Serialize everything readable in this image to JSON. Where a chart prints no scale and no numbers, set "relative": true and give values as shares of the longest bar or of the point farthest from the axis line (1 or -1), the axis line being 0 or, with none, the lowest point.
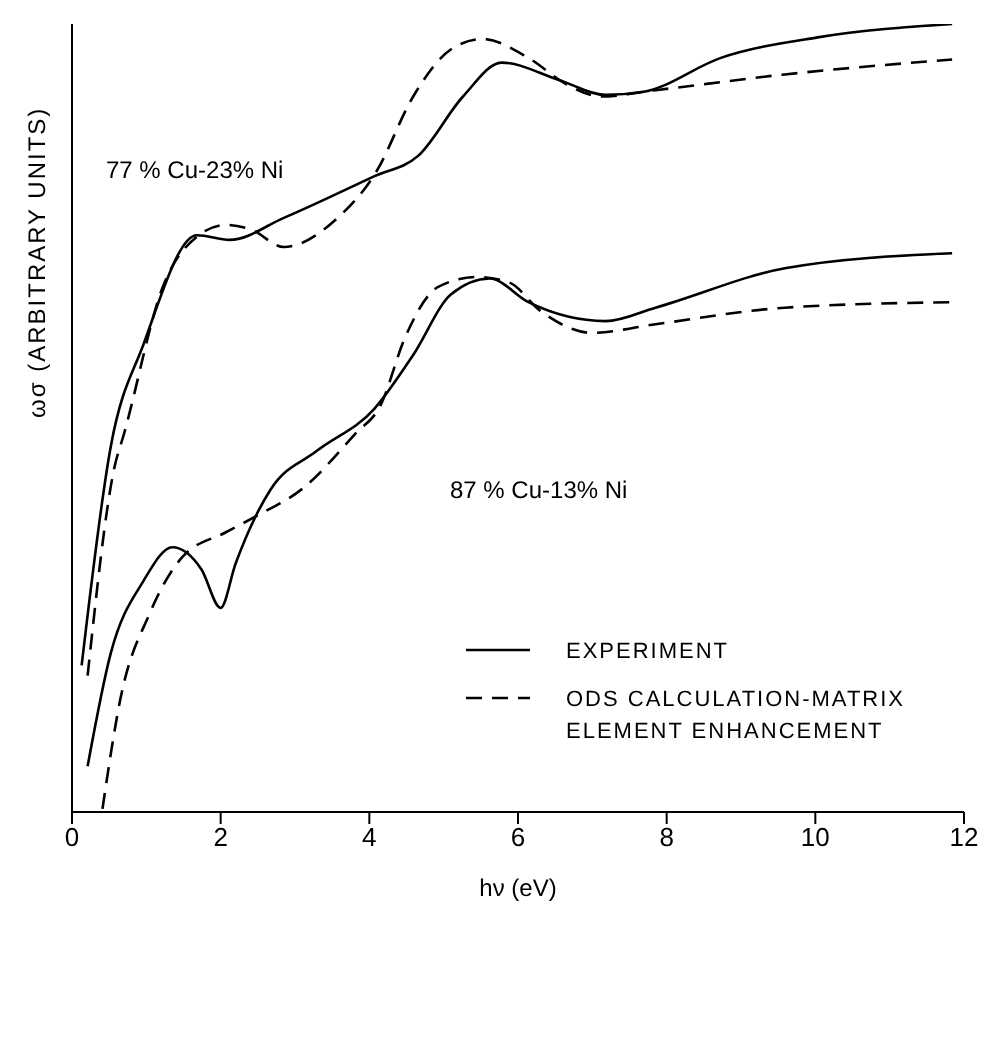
{
  "chart_data": {
    "type": "line",
    "relative": true,
    "xlabel": "hν (eV)",
    "ylabel": "ωσ (ARBITRARY UNITS)",
    "xlim": [
      0,
      12
    ],
    "xticks": [
      0,
      2,
      4,
      6,
      8,
      10,
      12
    ],
    "grid": false,
    "legend": "right",
    "marker": "none",
    "annotations": [
      "77 % Cu-23% Ni",
      "87 % Cu-13% Ni"
    ],
    "series": [
      {
        "name": "EXPERIMENT",
        "color": "#000000",
        "line_style": "solid",
        "x": [
          0.13,
          0.52,
          0.96,
          1.68,
          2.12,
          2.85,
          4.07,
          4.66,
          5.26,
          5.78,
          6.55,
          7.18,
          7.69,
          8.73,
          10.03,
          11.84
        ],
        "values": [
          0.186,
          0.463,
          0.593,
          0.732,
          0.726,
          0.754,
          0.807,
          0.833,
          0.908,
          0.951,
          0.929,
          0.91,
          0.914,
          0.957,
          0.983,
          1.0
        ]
      },
      {
        "name": "ODS CALCULATION-MATRIX ELEMENT ENHANCEMENT",
        "color": "#000000",
        "line_style": "dashed",
        "x": [
          0.21,
          0.57,
          0.7,
          1.22,
          1.68,
          2.07,
          2.41,
          2.85,
          3.55,
          4.09,
          4.59,
          5.1,
          5.52,
          6.14,
          6.66,
          7.12,
          7.85,
          9.59,
          11.84
        ],
        "values": [
          0.173,
          0.437,
          0.48,
          0.666,
          0.73,
          0.745,
          0.739,
          0.717,
          0.752,
          0.812,
          0.908,
          0.968,
          0.981,
          0.957,
          0.923,
          0.908,
          0.916,
          0.936,
          0.955
        ]
      },
      {
        "color": "#000000",
        "line_style": "solid",
        "x": [
          0.21,
          0.52,
          0.96,
          1.35,
          1.74,
          2.0,
          2.2,
          2.67,
          3.29,
          4.07,
          4.59,
          5.1,
          5.62,
          6.14,
          7.18,
          7.85,
          9.59,
          11.84
        ],
        "values": [
          0.058,
          0.201,
          0.293,
          0.336,
          0.308,
          0.259,
          0.315,
          0.409,
          0.458,
          0.512,
          0.58,
          0.657,
          0.677,
          0.647,
          0.623,
          0.64,
          0.69,
          0.709
        ]
      },
      {
        "color": "#000000",
        "line_style": "dashed",
        "x": [
          0.41,
          0.65,
          1.04,
          1.48,
          2.07,
          2.51,
          3.11,
          3.81,
          4.15,
          4.48,
          4.92,
          5.44,
          5.88,
          6.3,
          7.0,
          7.85,
          9.59,
          11.84
        ],
        "values": [
          0.004,
          0.143,
          0.251,
          0.323,
          0.355,
          0.377,
          0.411,
          0.48,
          0.516,
          0.602,
          0.666,
          0.679,
          0.672,
          0.636,
          0.608,
          0.619,
          0.64,
          0.647
        ]
      }
    ]
  }
}
